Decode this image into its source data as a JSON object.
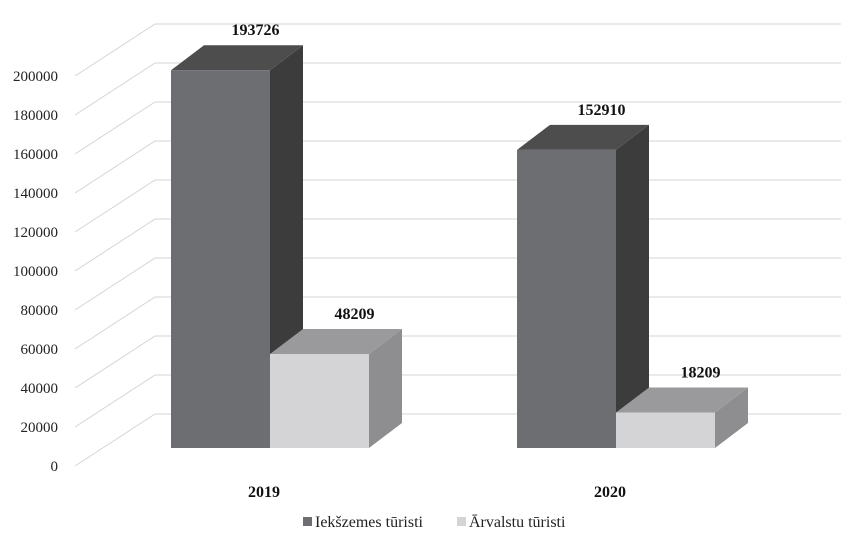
{
  "chart_data": {
    "type": "bar",
    "categories": [
      "2019",
      "2020"
    ],
    "series": [
      {
        "name": "Iekšzemes tūristi",
        "values": [
          193726,
          152910
        ],
        "color": "#6d6e72",
        "side_color": "#3c3c3c",
        "top_color": "#4d4d4d"
      },
      {
        "name": "Ārvalstu tūristi",
        "values": [
          48209,
          18209
        ],
        "color": "#d4d4d6",
        "side_color": "#8e8e90",
        "top_color": "#9a9a9c"
      }
    ],
    "title": "",
    "xlabel": "",
    "ylabel": "",
    "ylim": [
      0,
      200000
    ],
    "yticks": [
      0,
      20000,
      40000,
      60000,
      80000,
      100000,
      120000,
      140000,
      160000,
      180000,
      200000
    ],
    "grid": true,
    "legend": "bottom-center",
    "style": "3d-column"
  }
}
